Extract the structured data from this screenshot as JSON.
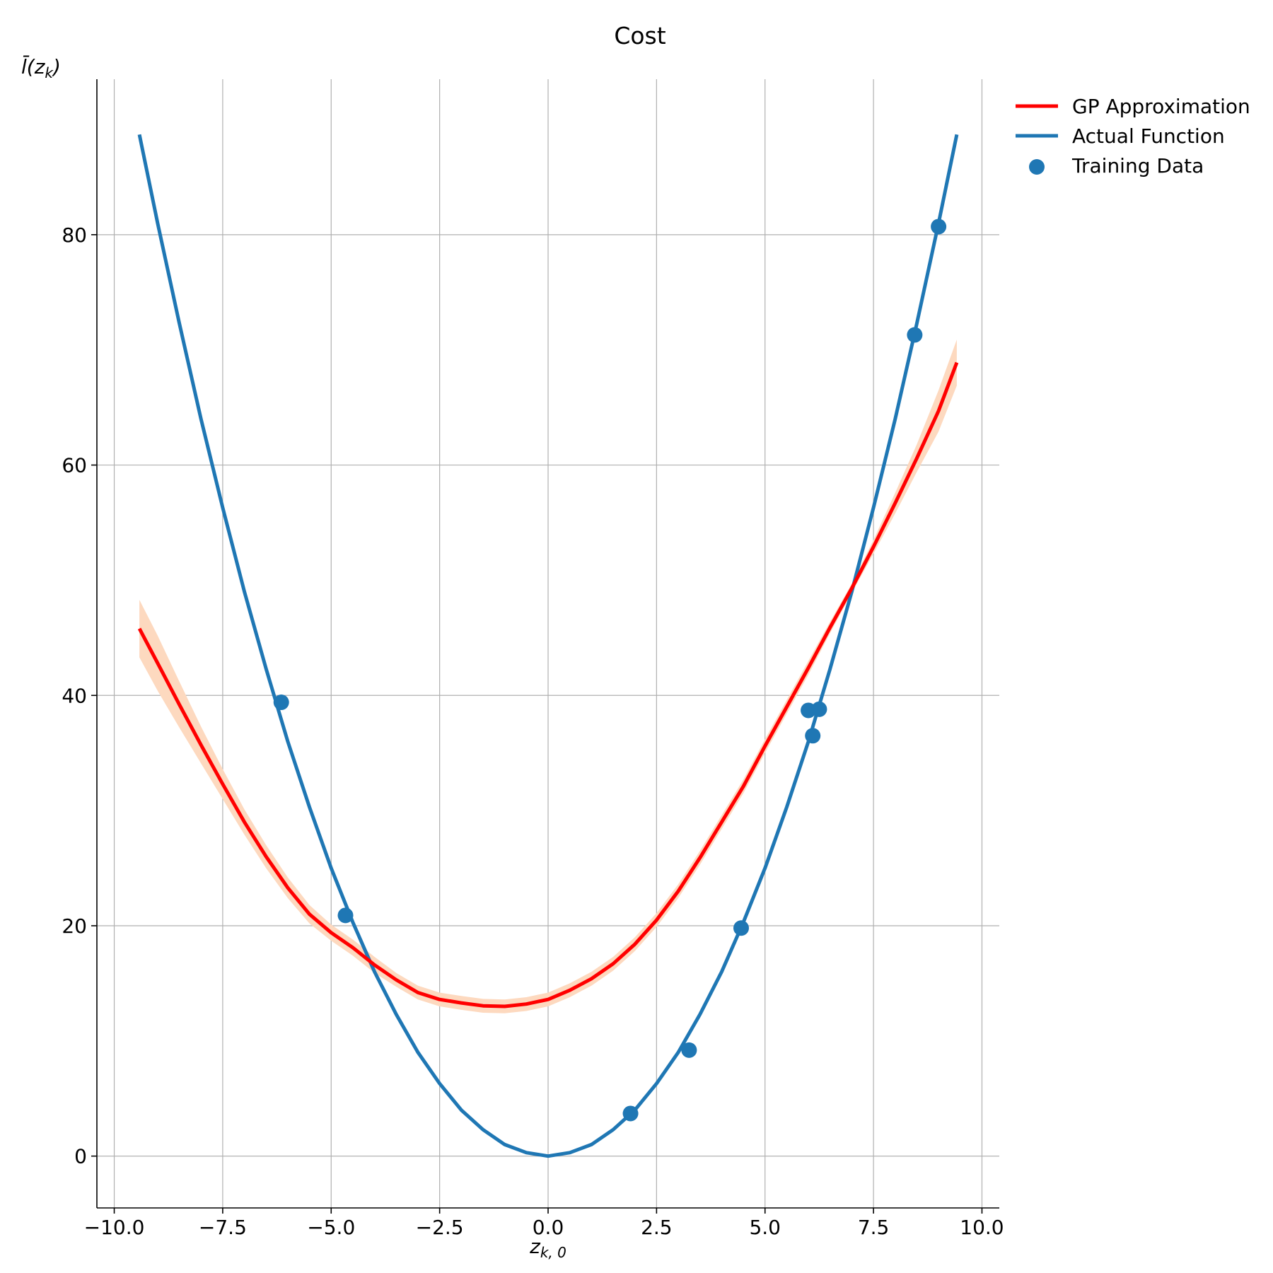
{
  "chart_data": {
    "type": "line",
    "title": "Cost",
    "xlabel": "z_{k,0}",
    "ylabel": "l̄(z_k)",
    "xlim": [
      -10.4,
      10.4
    ],
    "ylim": [
      -4.5,
      93.5
    ],
    "xticks": [
      -10.0,
      -7.5,
      -5.0,
      -2.5,
      0.0,
      2.5,
      5.0,
      7.5,
      10.0
    ],
    "xtick_labels": [
      "−10.0",
      "−7.5",
      "−5.0",
      "−2.5",
      "0.0",
      "2.5",
      "5.0",
      "7.5",
      "10.0"
    ],
    "yticks": [
      0,
      20,
      40,
      60,
      80
    ],
    "ytick_labels": [
      "0",
      "20",
      "40",
      "60",
      "80"
    ],
    "grid": true,
    "legend_position": "outside-top-right",
    "series": [
      {
        "name": "GP Approximation",
        "kind": "line",
        "color": "#ff0000",
        "band_color": "#fdd9bf",
        "x": [
          -9.42,
          -9.0,
          -8.5,
          -8.0,
          -7.5,
          -7.0,
          -6.5,
          -6.0,
          -5.5,
          -5.0,
          -4.5,
          -4.0,
          -3.5,
          -3.0,
          -2.5,
          -2.0,
          -1.5,
          -1.0,
          -0.5,
          0.0,
          0.5,
          1.0,
          1.5,
          2.0,
          2.5,
          3.0,
          3.5,
          4.0,
          4.5,
          5.0,
          5.5,
          6.0,
          6.5,
          7.0,
          7.5,
          8.0,
          8.5,
          9.0,
          9.42
        ],
        "y": [
          45.8,
          42.8,
          39.2,
          35.7,
          32.3,
          29.0,
          26.0,
          23.3,
          21.0,
          19.4,
          18.1,
          16.6,
          15.3,
          14.2,
          13.6,
          13.3,
          13.05,
          13.0,
          13.2,
          13.6,
          14.4,
          15.4,
          16.7,
          18.4,
          20.5,
          23.0,
          25.9,
          29.0,
          32.1,
          35.6,
          39.0,
          42.4,
          45.9,
          49.3,
          52.9,
          56.7,
          60.6,
          64.7,
          68.9
        ],
        "upper": [
          48.3,
          45.2,
          41.2,
          37.3,
          33.6,
          30.1,
          27.0,
          24.2,
          21.8,
          20.1,
          18.8,
          17.3,
          15.9,
          14.8,
          14.2,
          13.9,
          13.65,
          13.6,
          13.8,
          14.2,
          15.0,
          16.0,
          17.3,
          19.0,
          21.1,
          23.6,
          26.5,
          29.6,
          32.7,
          36.2,
          39.6,
          43.0,
          46.4,
          49.7,
          53.5,
          57.6,
          61.8,
          66.5,
          70.9
        ],
        "lower": [
          43.3,
          40.4,
          37.2,
          34.1,
          31.0,
          27.9,
          25.0,
          22.4,
          20.2,
          18.7,
          17.4,
          15.9,
          14.7,
          13.6,
          13.0,
          12.7,
          12.45,
          12.4,
          12.6,
          13.0,
          13.8,
          14.8,
          16.1,
          17.8,
          19.9,
          22.4,
          25.3,
          28.4,
          31.5,
          35.0,
          38.4,
          41.8,
          45.4,
          48.9,
          52.3,
          55.8,
          59.4,
          62.9,
          66.9
        ]
      },
      {
        "name": "Actual Function",
        "kind": "line",
        "color": "#1f77b4",
        "x": [
          -9.42,
          -9.0,
          -8.5,
          -8.0,
          -7.5,
          -7.0,
          -6.5,
          -6.0,
          -5.5,
          -5.0,
          -4.5,
          -4.0,
          -3.5,
          -3.0,
          -2.5,
          -2.0,
          -1.5,
          -1.0,
          -0.5,
          0.0,
          0.5,
          1.0,
          1.5,
          2.0,
          2.5,
          3.0,
          3.5,
          4.0,
          4.5,
          5.0,
          5.5,
          6.0,
          6.5,
          7.0,
          7.5,
          8.0,
          8.5,
          9.0,
          9.42
        ],
        "y": [
          88.7,
          81.0,
          72.3,
          64.0,
          56.3,
          49.0,
          42.3,
          36.0,
          30.3,
          25.0,
          20.3,
          16.0,
          12.3,
          9.0,
          6.3,
          4.0,
          2.3,
          1.0,
          0.3,
          0.0,
          0.3,
          1.0,
          2.3,
          4.0,
          6.3,
          9.0,
          12.3,
          16.0,
          20.3,
          25.0,
          30.3,
          36.0,
          42.3,
          49.0,
          56.3,
          64.0,
          72.3,
          81.0,
          88.7
        ]
      },
      {
        "name": "Training Data",
        "kind": "scatter",
        "color": "#1f77b4",
        "x": [
          -6.15,
          -4.67,
          1.9,
          3.25,
          4.45,
          6.0,
          6.1,
          6.25,
          8.45,
          9.0
        ],
        "y": [
          39.4,
          20.9,
          3.7,
          9.2,
          19.8,
          38.7,
          36.5,
          38.8,
          71.3,
          80.7
        ]
      }
    ]
  }
}
